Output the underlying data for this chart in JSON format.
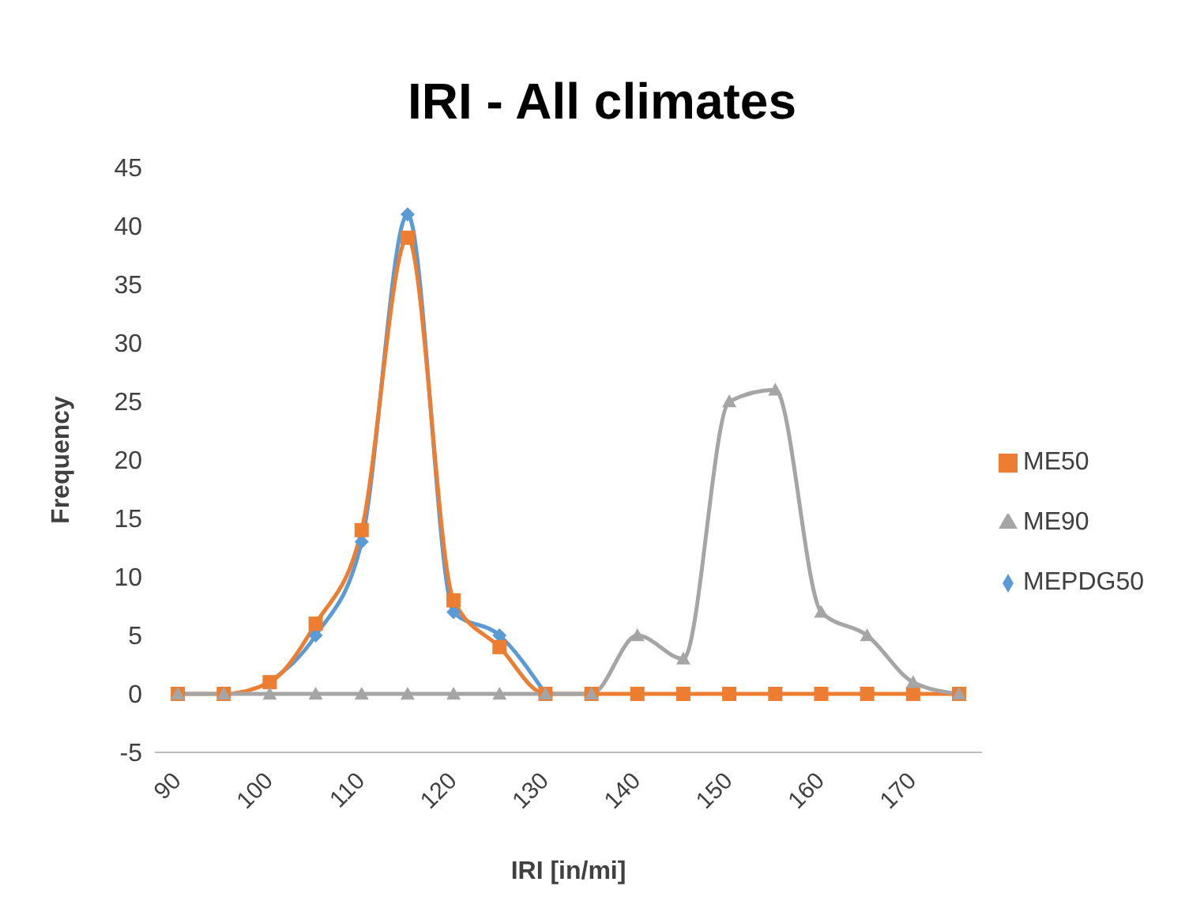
{
  "chart_data": {
    "type": "line",
    "title": "IRI - All climates",
    "xlabel": "IRI [in/mi]",
    "ylabel": "Frequency",
    "x": [
      90,
      95,
      100,
      105,
      110,
      115,
      120,
      125,
      130,
      135,
      140,
      145,
      150,
      155,
      160,
      165,
      170,
      175
    ],
    "series": [
      {
        "name": "MEPDG50",
        "color": "#5b9bd5",
        "marker": "diamond",
        "values": [
          null,
          null,
          1,
          5,
          13,
          41,
          7,
          5,
          0,
          null,
          null,
          null,
          null,
          null,
          null,
          null,
          null,
          null
        ]
      },
      {
        "name": "ME50",
        "color": "#ed7d31",
        "marker": "square",
        "values": [
          0,
          0,
          1,
          6,
          14,
          39,
          8,
          4,
          0,
          0,
          0,
          0,
          0,
          0,
          0,
          0,
          0,
          0
        ]
      },
      {
        "name": "ME90",
        "color": "#a5a5a5",
        "marker": "triangle",
        "values": [
          0,
          0,
          0,
          0,
          0,
          0,
          0,
          0,
          0,
          0,
          5,
          3,
          25,
          26,
          7,
          5,
          1,
          0
        ]
      }
    ],
    "xlim": [
      87.5,
      177.5
    ],
    "xticks": [
      90,
      100,
      110,
      120,
      130,
      140,
      150,
      160,
      170
    ],
    "ylim": [
      -5,
      45
    ],
    "yticks": [
      -5,
      0,
      5,
      10,
      15,
      20,
      25,
      30,
      35,
      40,
      45
    ],
    "grid": false,
    "legend": "right",
    "line_style": "solid"
  }
}
